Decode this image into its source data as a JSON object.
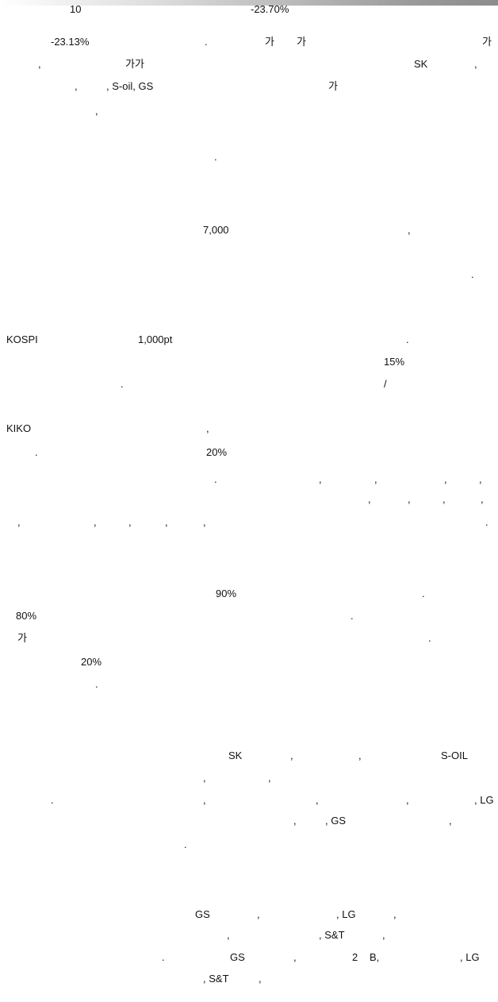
{
  "paragraph_1": {
    "l1_a": "10",
    "l1_b": "-23.70%",
    "l2_a": "-23.13%",
    "l2_b": ".",
    "l2_c": "가",
    "l2_d": "가",
    "l2_e": "가",
    "l3_a": ",",
    "l3_b": "가가",
    "l3_c": "SK",
    "l3_d": ",",
    "l4_a": ",",
    "l4_b": ", S-oil, GS",
    "l4_c": "가",
    "l5_a": ","
  },
  "paragraph_2": {
    "l1_a": "."
  },
  "paragraph_3": {
    "l1_a": "7,000",
    "l1_b": ",",
    "l2_a": "."
  },
  "paragraph_4": {
    "l1_a": "KOSPI",
    "l1_b": "1,000pt",
    "l1_c": ".",
    "l2_a": "15%",
    "l3_a": ".",
    "l3_b": "/"
  },
  "paragraph_5": {
    "l1_a": "KIKO",
    "l1_b": ",",
    "l2_a": ".",
    "l2_b": "20%",
    "l3_a": ".",
    "l3_b": ",",
    "l3_c": ",",
    "l3_d": ",",
    "l3_e": ",",
    "l4_a": ",",
    "l4_b": ",",
    "l4_c": ",",
    "l4_d": ",",
    "l5_a": ",",
    "l5_b": ",",
    "l5_c": ",",
    "l5_d": ",",
    "l5_e": ",",
    "l5_f": "."
  },
  "paragraph_6": {
    "l1_a": "90%",
    "l1_b": ".",
    "l2_a": "80%",
    "l2_b": ".",
    "l3_a": "가",
    "l3_b": ".",
    "l4_a": "20%",
    "l5_a": "."
  },
  "paragraph_7": {
    "l1_a": "SK",
    "l1_b": ",",
    "l1_c": ",",
    "l1_d": "S-OIL",
    "l2_a": ",",
    "l2_b": ",",
    "l3_a": ".",
    "l3_b": ",",
    "l3_c": ",",
    "l3_d": ",",
    "l3_e": ", LG",
    "l4_a": ",",
    "l4_b": ", GS",
    "l4_c": ",",
    "l5_a": "."
  },
  "paragraph_8": {
    "l1_a": "GS",
    "l1_b": ",",
    "l1_c": ", LG",
    "l1_d": ",",
    "l2_a": ",",
    "l2_b": ", S&T",
    "l2_c": ",",
    "l3_a": ".",
    "l3_b": "GS",
    "l3_c": ",",
    "l3_d": "2",
    "l3_e": "B,",
    "l3_f": ", LG",
    "l4_a": ", S&T",
    "l4_b": ","
  }
}
